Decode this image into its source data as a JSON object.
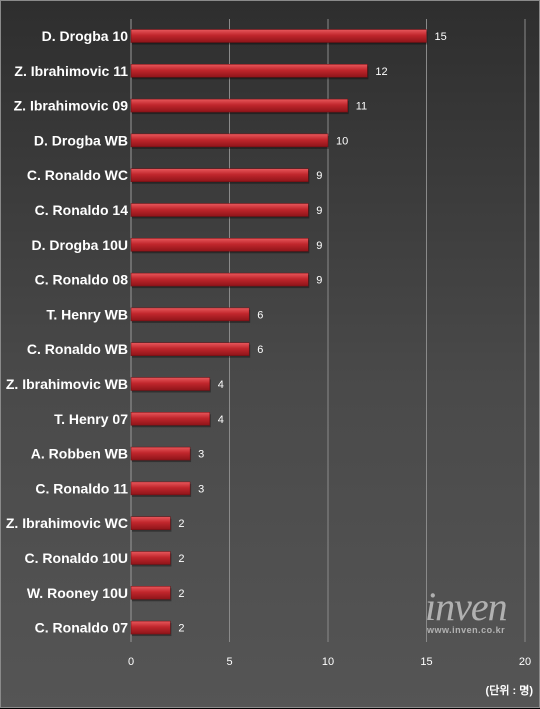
{
  "chart_data": {
    "type": "bar",
    "orientation": "horizontal",
    "categories": [
      "D. Drogba 10",
      "Z. Ibrahimovic 11",
      "Z. Ibrahimovic 09",
      "D. Drogba WB",
      "C. Ronaldo WC",
      "C. Ronaldo 14",
      "D. Drogba 10U",
      "C. Ronaldo 08",
      "T. Henry WB",
      "C. Ronaldo WB",
      "Z. Ibrahimovic WB",
      "T. Henry 07",
      "A. Robben WB",
      "C. Ronaldo 11",
      "Z. Ibrahimovic WC",
      "C. Ronaldo 10U",
      "W. Rooney 10U",
      "C. Ronaldo 07"
    ],
    "values": [
      15,
      12,
      11,
      10,
      9,
      9,
      9,
      9,
      6,
      6,
      4,
      4,
      3,
      3,
      2,
      2,
      2,
      2
    ],
    "xlim": [
      0,
      20
    ],
    "xticks": [
      0,
      5,
      10,
      15,
      20
    ],
    "grid": true,
    "bar_color": "#c0262c",
    "unit_label": "(단위 : 명)"
  },
  "watermark": {
    "brand": "inven",
    "url": "www.inven.co.kr"
  }
}
